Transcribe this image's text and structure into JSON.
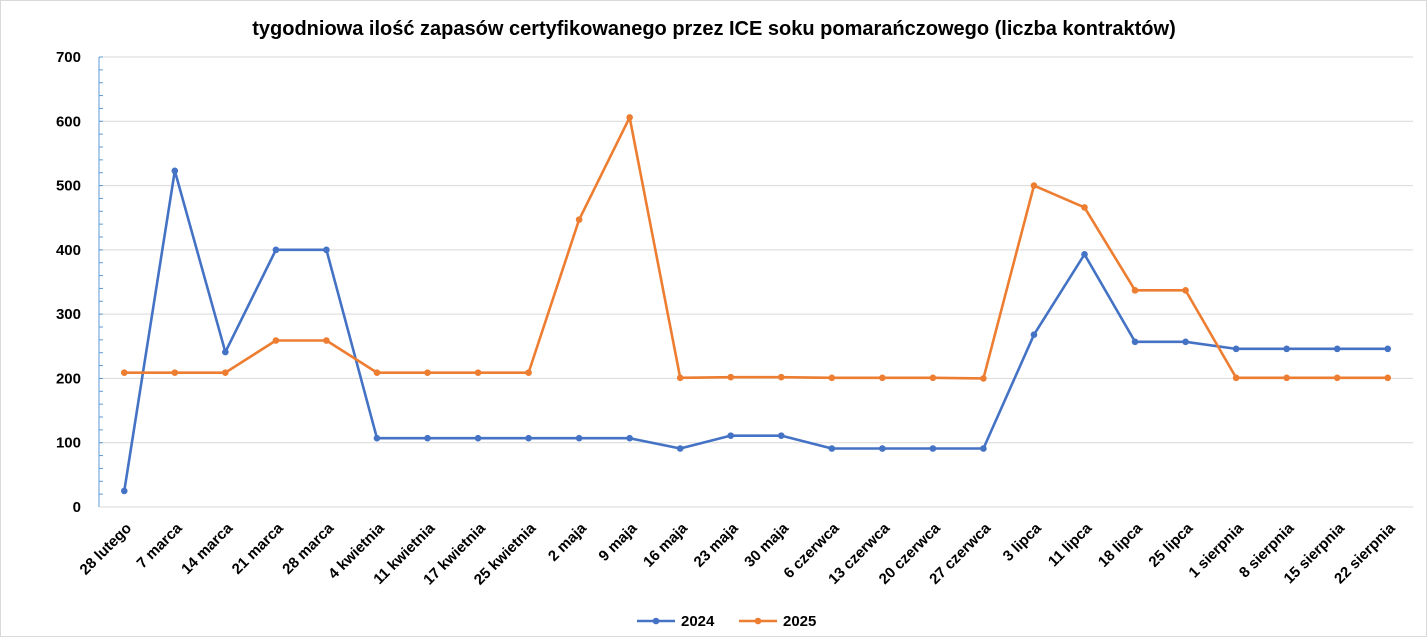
{
  "chart_data": {
    "type": "line",
    "title": "tygodniowa ilość zapasów certyfikowanego przez ICE soku pomarańczowego (liczba kontraktów)",
    "categories": [
      "28 lutego",
      "7 marca",
      "14 marca",
      "21 marca",
      "28 marca",
      "4 kwietnia",
      "11 kwietnia",
      "17 kwietnia",
      "25 kwietnia",
      "2 maja",
      "9 maja",
      "16 maja",
      "23 maja",
      "30 maja",
      "6 czerwca",
      "13 czerwca",
      "20 czerwca",
      "27 czerwca",
      "3 lipca",
      "11 lipca",
      "18 lipca",
      "25 lipca",
      "1 sierpnia",
      "8 sierpnia",
      "15 sierpnia",
      "22 sierpnia"
    ],
    "series": [
      {
        "name": "2024",
        "color": "#4472c4",
        "values": [
          25,
          523,
          241,
          400,
          400,
          107,
          107,
          107,
          107,
          107,
          107,
          91,
          111,
          111,
          91,
          91,
          91,
          91,
          268,
          393,
          257,
          257,
          246,
          246,
          246,
          246
        ]
      },
      {
        "name": "2025",
        "color": "#ed7d31",
        "values": [
          209,
          209,
          209,
          259,
          259,
          209,
          209,
          209,
          209,
          447,
          606,
          201,
          202,
          202,
          201,
          201,
          201,
          200,
          500,
          466,
          337,
          337,
          201,
          201,
          201,
          201
        ]
      }
    ],
    "ylim": [
      0,
      700
    ],
    "yticks": [
      "0",
      "100",
      "200",
      "300",
      "400",
      "500",
      "600",
      "700"
    ],
    "grid": true,
    "legend": "bottom"
  }
}
